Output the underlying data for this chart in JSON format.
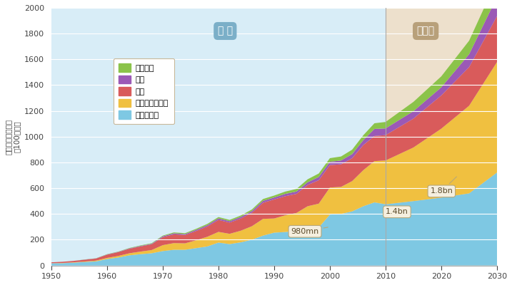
{
  "ylabel": "国際観光客到着数\n（100万人）",
  "years_actual": [
    1950,
    1952,
    1954,
    1956,
    1958,
    1960,
    1962,
    1964,
    1966,
    1968,
    1970,
    1972,
    1974,
    1976,
    1978,
    1980,
    1982,
    1984,
    1986,
    1988,
    1990,
    1992,
    1994,
    1996,
    1998,
    2000,
    2002,
    2004,
    2006,
    2008,
    2010
  ],
  "years_forecast": [
    2010,
    2015,
    2020,
    2025,
    2030
  ],
  "europe_actual": [
    17,
    18,
    22,
    27,
    32,
    50,
    62,
    79,
    88,
    95,
    112,
    122,
    122,
    135,
    148,
    178,
    166,
    180,
    200,
    232,
    255,
    260,
    268,
    290,
    295,
    395,
    400,
    420,
    460,
    490,
    475
  ],
  "asia_actual": [
    1,
    2,
    3,
    4,
    6,
    9,
    12,
    16,
    20,
    25,
    46,
    52,
    50,
    61,
    75,
    83,
    80,
    90,
    105,
    130,
    110,
    130,
    140,
    170,
    185,
    210,
    210,
    235,
    280,
    320,
    340
  ],
  "americas_actual": [
    7,
    9,
    11,
    14,
    16,
    25,
    30,
    35,
    40,
    45,
    62,
    68,
    65,
    72,
    80,
    93,
    87,
    95,
    105,
    125,
    148,
    148,
    148,
    165,
    182,
    175,
    175,
    178,
    195,
    195,
    197
  ],
  "me_actual": [
    0,
    0,
    0,
    1,
    1,
    2,
    2,
    3,
    4,
    4,
    7,
    8,
    7,
    9,
    10,
    12,
    11,
    12,
    13,
    15,
    15,
    18,
    18,
    21,
    25,
    25,
    30,
    32,
    38,
    55,
    52
  ],
  "africa_actual": [
    0,
    0,
    0,
    1,
    1,
    2,
    2,
    3,
    4,
    4,
    5,
    7,
    7,
    8,
    10,
    10,
    10,
    11,
    12,
    14,
    15,
    18,
    20,
    23,
    27,
    28,
    31,
    34,
    38,
    44,
    50
  ],
  "europe_forecast": [
    475,
    500,
    527,
    560,
    722
  ],
  "asia_forecast": [
    340,
    416,
    535,
    680,
    857
  ],
  "americas_forecast": [
    197,
    224,
    258,
    300,
    356
  ],
  "me_forecast": [
    52,
    58,
    63,
    100,
    149
  ],
  "africa_forecast": [
    50,
    72,
    85,
    105,
    134
  ],
  "color_europe": "#7EC8E3",
  "color_asia": "#F0C040",
  "color_americas": "#D95B5B",
  "color_middle_east": "#9B59B6",
  "color_africa": "#8BC34A",
  "actual_bg": "#D8EDF7",
  "forecast_bg": "#EDE0CC",
  "actual_label": "実 績",
  "forecast_label": "見通し",
  "actual_label_bg": "#7BAFC8",
  "forecast_label_bg": "#B8A07A",
  "legend_labels": [
    "アフリカ",
    "中東",
    "米州",
    "アジア・太平洋",
    "ヨーロッパ"
  ],
  "ylim": [
    0,
    2000
  ],
  "xlim": [
    1950,
    2030
  ],
  "yticks": [
    0,
    200,
    400,
    600,
    800,
    1000,
    1200,
    1400,
    1600,
    1800,
    2000
  ],
  "xticks": [
    1950,
    1960,
    1970,
    1980,
    1990,
    2000,
    2010,
    2020,
    2030
  ],
  "split_year": 2010
}
